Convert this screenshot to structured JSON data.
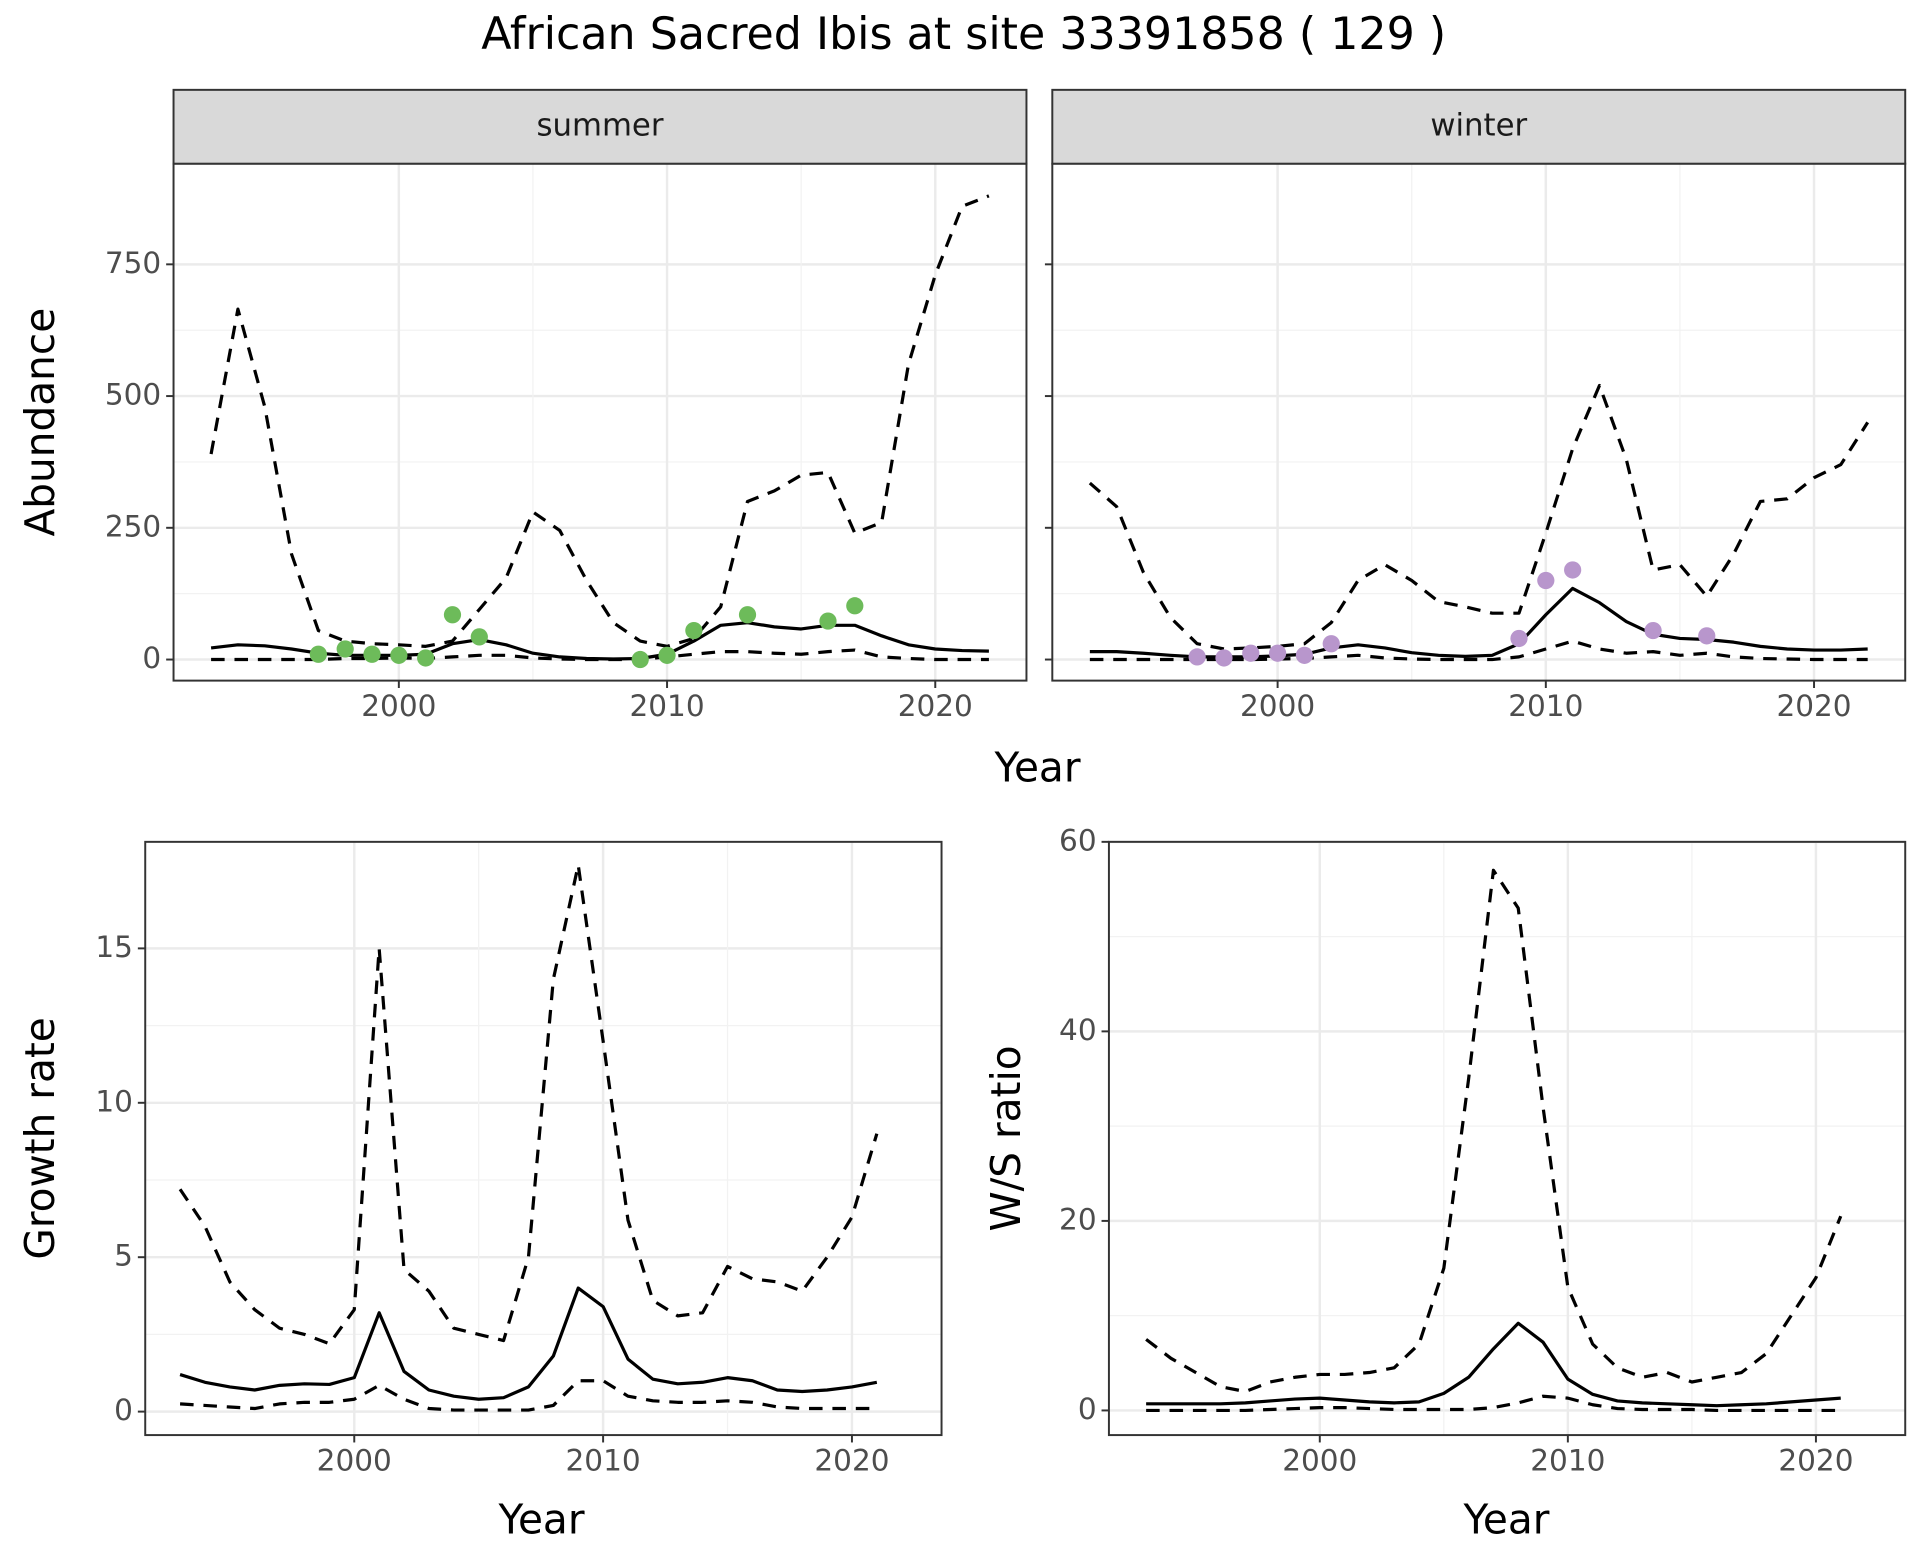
{
  "title": "African Sacred Ibis at site 33391858 ( 129 )",
  "chart_data": [
    {
      "type": "line",
      "strip": "summer",
      "xlabel": "Year",
      "ylabel": "Abundance",
      "grid": true,
      "xlim": [
        1991.6,
        2023.4
      ],
      "ylim": [
        -40,
        941
      ],
      "xticks": [
        2000,
        2010,
        2020
      ],
      "yticks": [
        0,
        250,
        500,
        750
      ],
      "series": [
        {
          "style": "dashed",
          "color": "#000000",
          "x": [
            1993,
            1994,
            1995,
            1996,
            1997,
            1998,
            1999,
            2000,
            2001,
            2002,
            2003,
            2004,
            2005,
            2006,
            2007,
            2008,
            2009,
            2010,
            2011,
            2012,
            2013,
            2014,
            2015,
            2016,
            2017,
            2018,
            2019,
            2020,
            2021,
            2022
          ],
          "values": [
            390,
            665,
            480,
            200,
            55,
            35,
            30,
            28,
            25,
            35,
            95,
            155,
            280,
            245,
            150,
            70,
            35,
            25,
            40,
            100,
            300,
            320,
            350,
            355,
            240,
            260,
            560,
            730,
            860,
            880
          ]
        },
        {
          "style": "dashed",
          "color": "#000000",
          "x": [
            1993,
            1994,
            1995,
            1996,
            1997,
            1998,
            1999,
            2000,
            2001,
            2002,
            2003,
            2004,
            2005,
            2006,
            2007,
            2008,
            2009,
            2010,
            2011,
            2012,
            2013,
            2014,
            2015,
            2016,
            2017,
            2018,
            2019,
            2020,
            2021,
            2022
          ],
          "values": [
            0,
            0,
            0,
            0,
            0,
            2,
            2,
            3,
            2,
            5,
            8,
            8,
            3,
            1,
            0,
            0,
            0,
            5,
            10,
            15,
            15,
            12,
            10,
            15,
            18,
            5,
            2,
            0,
            0,
            0
          ]
        },
        {
          "style": "solid",
          "color": "#000000",
          "x": [
            1993,
            1994,
            1995,
            1996,
            1997,
            1998,
            1999,
            2000,
            2001,
            2002,
            2003,
            2004,
            2005,
            2006,
            2007,
            2008,
            2009,
            2010,
            2011,
            2012,
            2013,
            2014,
            2015,
            2016,
            2017,
            2018,
            2019,
            2020,
            2021,
            2022
          ],
          "values": [
            22,
            28,
            26,
            20,
            12,
            8,
            8,
            8,
            10,
            30,
            38,
            28,
            12,
            5,
            2,
            1,
            2,
            10,
            35,
            65,
            70,
            62,
            58,
            65,
            65,
            45,
            28,
            20,
            17,
            16
          ]
        },
        {
          "style": "points",
          "color": "#6dbb5a",
          "x": [
            1997,
            1998,
            1999,
            2000,
            2001,
            2002,
            2003,
            2009,
            2010,
            2011,
            2013,
            2016,
            2017
          ],
          "values": [
            10,
            20,
            10,
            8,
            3,
            85,
            43,
            0,
            8,
            55,
            85,
            73,
            102
          ]
        }
      ]
    },
    {
      "type": "line",
      "strip": "winter",
      "yaxis_labels": false,
      "grid": true,
      "xlim": [
        1991.6,
        2023.4
      ],
      "ylim": [
        -40,
        941
      ],
      "xticks": [
        2000,
        2010,
        2020
      ],
      "yticks": [
        0,
        250,
        500,
        750
      ],
      "series": [
        {
          "style": "dashed",
          "color": "#000000",
          "x": [
            1993,
            1994,
            1995,
            1996,
            1997,
            1998,
            1999,
            2000,
            2001,
            2002,
            2003,
            2004,
            2005,
            2006,
            2007,
            2008,
            2009,
            2010,
            2011,
            2012,
            2013,
            2014,
            2015,
            2016,
            2017,
            2018,
            2019,
            2020,
            2021,
            2022
          ],
          "values": [
            335,
            290,
            165,
            80,
            30,
            20,
            22,
            25,
            30,
            70,
            150,
            180,
            150,
            110,
            100,
            88,
            88,
            240,
            400,
            520,
            380,
            170,
            180,
            120,
            200,
            300,
            305,
            345,
            370,
            450
          ]
        },
        {
          "style": "dashed",
          "color": "#000000",
          "x": [
            1993,
            1994,
            1995,
            1996,
            1997,
            1998,
            1999,
            2000,
            2001,
            2002,
            2003,
            2004,
            2005,
            2006,
            2007,
            2008,
            2009,
            2010,
            2011,
            2012,
            2013,
            2014,
            2015,
            2016,
            2017,
            2018,
            2019,
            2020,
            2021,
            2022
          ],
          "values": [
            0,
            0,
            0,
            0,
            0,
            0,
            0,
            1,
            2,
            5,
            8,
            3,
            1,
            0,
            0,
            0,
            5,
            20,
            35,
            20,
            12,
            15,
            8,
            12,
            5,
            2,
            1,
            0,
            0,
            0
          ]
        },
        {
          "style": "solid",
          "color": "#000000",
          "x": [
            1993,
            1994,
            1995,
            1996,
            1997,
            1998,
            1999,
            2000,
            2001,
            2002,
            2003,
            2004,
            2005,
            2006,
            2007,
            2008,
            2009,
            2010,
            2011,
            2012,
            2013,
            2014,
            2015,
            2016,
            2017,
            2018,
            2019,
            2020,
            2021,
            2022
          ],
          "values": [
            15,
            15,
            12,
            8,
            5,
            5,
            5,
            7,
            10,
            22,
            28,
            22,
            13,
            8,
            6,
            8,
            30,
            85,
            135,
            108,
            72,
            48,
            40,
            38,
            33,
            25,
            20,
            18,
            18,
            20
          ]
        },
        {
          "style": "points",
          "color": "#b896cc",
          "x": [
            1997,
            1998,
            1999,
            2000,
            2001,
            2002,
            2009,
            2010,
            2011,
            2014,
            2016
          ],
          "values": [
            5,
            3,
            12,
            12,
            8,
            30,
            40,
            150,
            170,
            55,
            45
          ]
        }
      ]
    },
    {
      "type": "line",
      "xlabel": "Year",
      "ylabel": "Growth rate",
      "grid": true,
      "xlim": [
        1991.6,
        2023.6
      ],
      "ylim": [
        -0.76,
        18.45
      ],
      "xticks": [
        2000,
        2010,
        2020
      ],
      "yticks": [
        0,
        5,
        10,
        15
      ],
      "series": [
        {
          "style": "dashed",
          "color": "#000000",
          "x": [
            1993,
            1994,
            1995,
            1996,
            1997,
            1998,
            1999,
            2000,
            2001,
            2002,
            2003,
            2004,
            2005,
            2006,
            2007,
            2008,
            2009,
            2010,
            2011,
            2012,
            2013,
            2014,
            2015,
            2016,
            2017,
            2018,
            2019,
            2020,
            2021
          ],
          "values": [
            7.2,
            6.0,
            4.2,
            3.3,
            2.7,
            2.5,
            2.2,
            3.3,
            15.0,
            4.6,
            3.9,
            2.7,
            2.5,
            2.3,
            5.0,
            14.0,
            17.7,
            12.0,
            6.2,
            3.6,
            3.1,
            3.2,
            4.7,
            4.3,
            4.2,
            3.9,
            5.0,
            6.3,
            9.0
          ]
        },
        {
          "style": "dashed",
          "color": "#000000",
          "x": [
            1993,
            1994,
            1995,
            1996,
            1997,
            1998,
            1999,
            2000,
            2001,
            2002,
            2003,
            2004,
            2005,
            2006,
            2007,
            2008,
            2009,
            2010,
            2011,
            2012,
            2013,
            2014,
            2015,
            2016,
            2017,
            2018,
            2019,
            2020,
            2021
          ],
          "values": [
            0.25,
            0.2,
            0.15,
            0.1,
            0.25,
            0.3,
            0.3,
            0.4,
            0.85,
            0.4,
            0.1,
            0.05,
            0.05,
            0.05,
            0.05,
            0.2,
            1.0,
            1.0,
            0.5,
            0.35,
            0.3,
            0.3,
            0.35,
            0.3,
            0.15,
            0.1,
            0.1,
            0.1,
            0.1
          ]
        },
        {
          "style": "solid",
          "color": "#000000",
          "x": [
            1993,
            1994,
            1995,
            1996,
            1997,
            1998,
            1999,
            2000,
            2001,
            2002,
            2003,
            2004,
            2005,
            2006,
            2007,
            2008,
            2009,
            2010,
            2011,
            2012,
            2013,
            2014,
            2015,
            2016,
            2017,
            2018,
            2019,
            2020,
            2021
          ],
          "values": [
            1.2,
            0.95,
            0.8,
            0.7,
            0.85,
            0.9,
            0.88,
            1.1,
            3.2,
            1.3,
            0.7,
            0.5,
            0.4,
            0.45,
            0.8,
            1.8,
            4.0,
            3.4,
            1.7,
            1.05,
            0.9,
            0.95,
            1.1,
            1.0,
            0.7,
            0.65,
            0.7,
            0.8,
            0.95
          ]
        }
      ]
    },
    {
      "type": "line",
      "xlabel": "Year",
      "ylabel": "W/S ratio",
      "grid": true,
      "xlim": [
        1991.5,
        2023.6
      ],
      "ylim": [
        -2.6,
        60
      ],
      "xticks": [
        2000,
        2010,
        2020
      ],
      "yticks": [
        0,
        20,
        40,
        60
      ],
      "series": [
        {
          "style": "dashed",
          "color": "#000000",
          "x": [
            1993,
            1994,
            1995,
            1996,
            1997,
            1998,
            1999,
            2000,
            2001,
            2002,
            2003,
            2004,
            2005,
            2006,
            2007,
            2008,
            2009,
            2010,
            2011,
            2012,
            2013,
            2014,
            2015,
            2016,
            2017,
            2018,
            2019,
            2020,
            2021
          ],
          "values": [
            7.5,
            5.5,
            4,
            2.5,
            2,
            3,
            3.5,
            3.8,
            3.8,
            4,
            4.5,
            7,
            15,
            35,
            57,
            53,
            32,
            13,
            7,
            4.5,
            3.5,
            4,
            3,
            3.5,
            4,
            6,
            10,
            14,
            20.5
          ]
        },
        {
          "style": "dashed",
          "color": "#000000",
          "x": [
            1993,
            1994,
            1995,
            1996,
            1997,
            1998,
            1999,
            2000,
            2001,
            2002,
            2003,
            2004,
            2005,
            2006,
            2007,
            2008,
            2009,
            2010,
            2011,
            2012,
            2013,
            2014,
            2015,
            2016,
            2017,
            2018,
            2019,
            2020,
            2021
          ],
          "values": [
            0,
            0,
            0,
            0,
            0,
            0.1,
            0.2,
            0.3,
            0.3,
            0.2,
            0.1,
            0.1,
            0.1,
            0.1,
            0.3,
            0.8,
            1.5,
            1.3,
            0.6,
            0.2,
            0.1,
            0.1,
            0.1,
            0,
            0,
            0,
            0,
            0,
            0
          ]
        },
        {
          "style": "solid",
          "color": "#000000",
          "x": [
            1993,
            1994,
            1995,
            1996,
            1997,
            1998,
            1999,
            2000,
            2001,
            2002,
            2003,
            2004,
            2005,
            2006,
            2007,
            2008,
            2009,
            2010,
            2011,
            2012,
            2013,
            2014,
            2015,
            2016,
            2017,
            2018,
            2019,
            2020,
            2021
          ],
          "values": [
            0.7,
            0.7,
            0.7,
            0.7,
            0.8,
            1.0,
            1.2,
            1.3,
            1.1,
            0.9,
            0.8,
            0.9,
            1.8,
            3.5,
            6.5,
            9.2,
            7.2,
            3.3,
            1.7,
            1.0,
            0.8,
            0.7,
            0.6,
            0.5,
            0.6,
            0.7,
            0.9,
            1.1,
            1.3
          ]
        }
      ]
    }
  ]
}
